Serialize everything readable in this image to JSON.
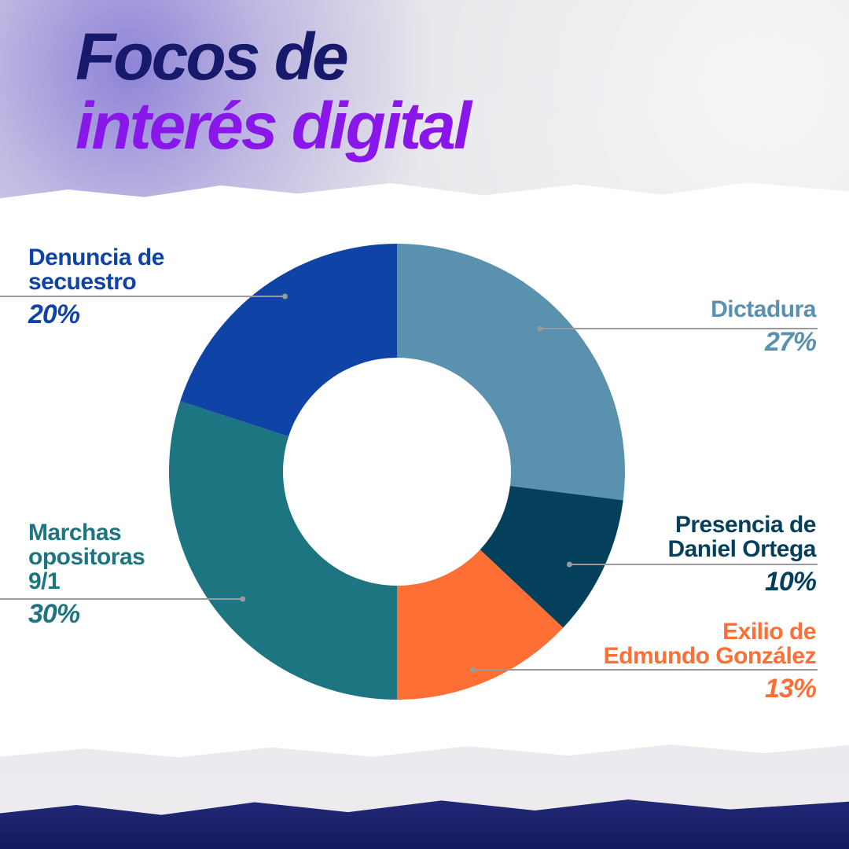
{
  "title": {
    "line1": "Focos de",
    "line2": "interés digital"
  },
  "colors": {
    "title_line1": "#17196b",
    "title_line2": "#8a17ea",
    "leader_line": "#9a9a9a"
  },
  "chart_data": {
    "type": "pie",
    "donut": true,
    "start": "top",
    "direction": "clockwise",
    "slices": [
      {
        "label": "Dictadura",
        "value": 27,
        "display": "27%",
        "color": "#5a91ae"
      },
      {
        "label": "Presencia de Daniel Ortega",
        "line1": "Presencia de",
        "line2": "Daniel Ortega",
        "value": 10,
        "display": "10%",
        "color": "#043f5c"
      },
      {
        "label": "Exilio de Edmundo González",
        "line1": "Exilio de",
        "line2": "Edmundo González",
        "value": 13,
        "display": "13%",
        "color": "#fd6f34"
      },
      {
        "label": "Marchas opositoras 9/1",
        "line1": "Marchas",
        "line2": "opositoras",
        "line3": "9/1",
        "value": 30,
        "display": "30%",
        "color": "#1e7582"
      },
      {
        "label": "Denuncia de secuestro",
        "line1": "Denuncia de",
        "line2": "secuestro",
        "value": 20,
        "display": "20%",
        "color": "#1043a6"
      }
    ]
  }
}
